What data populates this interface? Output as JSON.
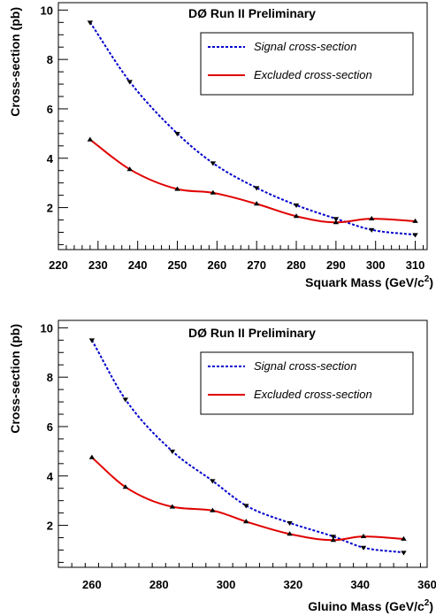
{
  "chart_data": [
    {
      "type": "line",
      "title": "DØ Run II Preliminary",
      "xlabel": "Squark Mass (GeV/c",
      "xlabel_superscript": "2",
      "xlabel_close": ")",
      "ylabel": "Cross-section (pb)",
      "xlim": [
        220,
        313
      ],
      "ylim": [
        0.3,
        10.3
      ],
      "x_ticks": [
        220,
        230,
        240,
        250,
        260,
        270,
        280,
        290,
        300,
        310
      ],
      "y_ticks": [
        2,
        4,
        6,
        8,
        10
      ],
      "grid": false,
      "legend_position": "top-right",
      "series": [
        {
          "name": "Signal cross-section",
          "color": "#0000cc",
          "style": "dotted",
          "marker": "triangle-down",
          "x": [
            228,
            238,
            250,
            259,
            270,
            280,
            290,
            299,
            310
          ],
          "y": [
            9.5,
            7.1,
            5.0,
            3.8,
            2.8,
            2.1,
            1.55,
            1.1,
            0.9
          ]
        },
        {
          "name": "Excluded cross-section",
          "color": "#e00000",
          "style": "solid",
          "marker": "triangle-up",
          "x": [
            228,
            238,
            250,
            259,
            270,
            280,
            290,
            299,
            310
          ],
          "y": [
            4.75,
            3.55,
            2.75,
            2.6,
            2.15,
            1.65,
            1.4,
            1.55,
            1.45
          ]
        }
      ]
    },
    {
      "type": "line",
      "title": "DØ Run II Preliminary",
      "xlabel": "Gluino Mass (GeV/c",
      "xlabel_superscript": "2",
      "xlabel_close": ")",
      "ylabel": "Cross-section (pb)",
      "xlim": [
        250,
        360
      ],
      "ylim": [
        0.3,
        10.3
      ],
      "x_ticks": [
        260,
        280,
        300,
        320,
        340,
        360
      ],
      "y_ticks": [
        2,
        4,
        6,
        8,
        10
      ],
      "grid": false,
      "legend_position": "top-right",
      "series": [
        {
          "name": "Signal cross-section",
          "color": "#0000cc",
          "style": "dotted",
          "marker": "triangle-down",
          "x": [
            260,
            270,
            284,
            296,
            306,
            319,
            332,
            341,
            353
          ],
          "y": [
            9.5,
            7.1,
            5.0,
            3.8,
            2.8,
            2.1,
            1.55,
            1.1,
            0.9
          ]
        },
        {
          "name": "Excluded cross-section",
          "color": "#e00000",
          "style": "solid",
          "marker": "triangle-up",
          "x": [
            260,
            270,
            284,
            296,
            306,
            319,
            332,
            341,
            353
          ],
          "y": [
            4.75,
            3.55,
            2.75,
            2.6,
            2.15,
            1.65,
            1.4,
            1.55,
            1.45
          ]
        }
      ]
    }
  ]
}
